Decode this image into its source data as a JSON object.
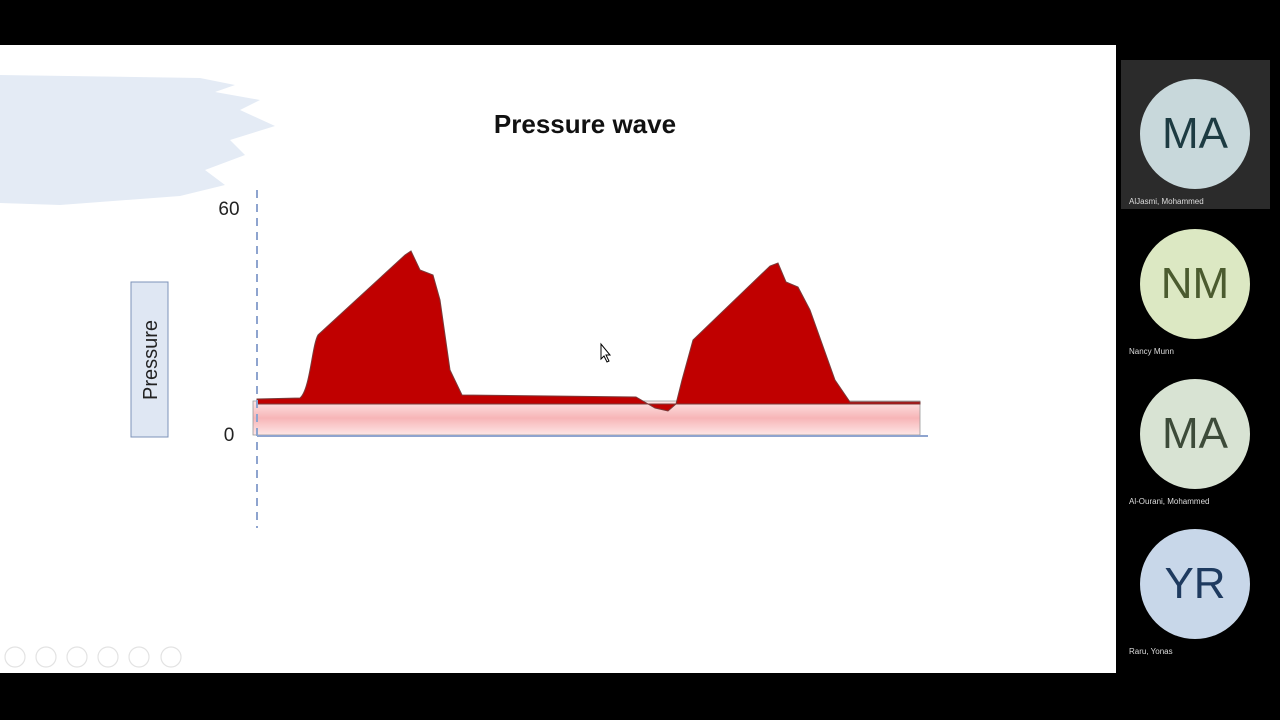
{
  "slide": {
    "title": "Pressure wave",
    "y_axis_label": "Pressure",
    "top_value": "60",
    "bottom_value": "0"
  },
  "participants": [
    {
      "initials": "MA",
      "name": "AlJasmi, Mohammed",
      "color": "#c8d8db",
      "text_color": "#1d3b42",
      "active": true
    },
    {
      "initials": "NM",
      "name": "Nancy Munn",
      "color": "#dce8c3",
      "text_color": "#4b5b2f",
      "active": false
    },
    {
      "initials": "MA",
      "name": "Al-Ourani, Mohammed",
      "color": "#d8e3d3",
      "text_color": "#3d4b39",
      "active": false
    },
    {
      "initials": "YR",
      "name": "Raru, Yonas",
      "color": "#c8d7e9",
      "text_color": "#1e3a5f",
      "active": false
    }
  ]
}
